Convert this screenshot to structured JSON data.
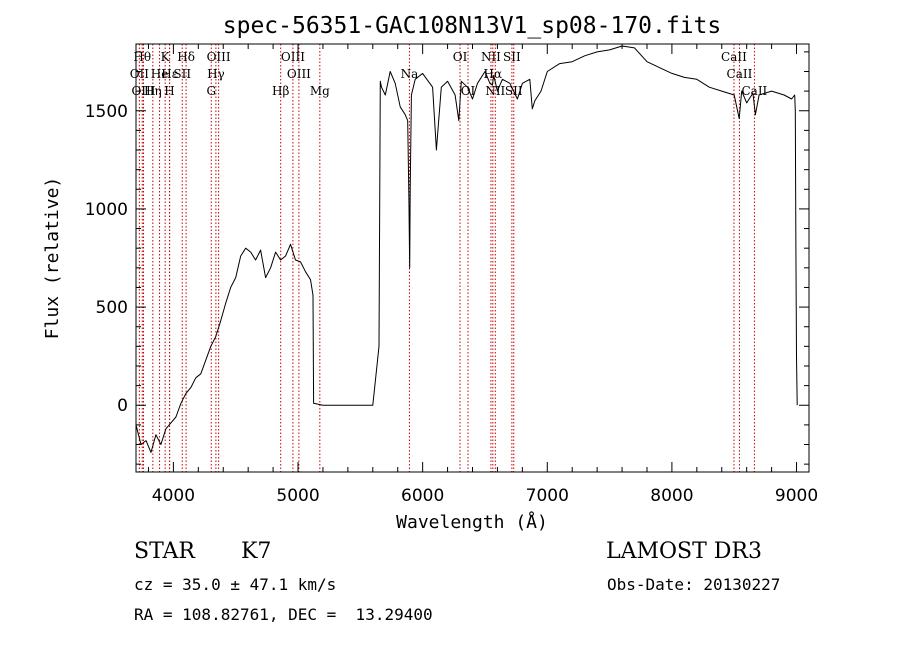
{
  "chart_data": {
    "type": "line",
    "title": "spec-56351-GAC108N13V1_sp08-170.fits",
    "xlabel": "Wavelength (Å)",
    "ylabel": "Flux (relative)",
    "xlim": [
      3700,
      9100
    ],
    "ylim": [
      -340,
      1840
    ],
    "xticks": [
      4000,
      5000,
      6000,
      7000,
      8000,
      9000
    ],
    "yticks": [
      0,
      500,
      1000,
      1500
    ],
    "grid": false,
    "series": [
      {
        "color": "#000000",
        "x": [
          3700,
          3740,
          3780,
          3820,
          3860,
          3900,
          3940,
          3980,
          4020,
          4060,
          4100,
          4140,
          4180,
          4220,
          4260,
          4300,
          4340,
          4380,
          4420,
          4460,
          4500,
          4540,
          4580,
          4620,
          4660,
          4700,
          4740,
          4780,
          4820,
          4860,
          4900,
          4940,
          4980,
          5020,
          5060,
          5100,
          5120,
          5125,
          5200,
          5300,
          5400,
          5500,
          5600,
          5650,
          5660,
          5670,
          5700,
          5740,
          5780,
          5820,
          5860,
          5880,
          5890,
          5896,
          5900,
          5910,
          5940,
          6000,
          6080,
          6110,
          6150,
          6200,
          6260,
          6290,
          6310,
          6360,
          6400,
          6440,
          6500,
          6540,
          6560,
          6570,
          6600,
          6640,
          6700,
          6760,
          6800,
          6860,
          6880,
          6900,
          6950,
          7000,
          7100,
          7200,
          7300,
          7400,
          7500,
          7600,
          7700,
          7800,
          7900,
          8000,
          8100,
          8200,
          8300,
          8400,
          8500,
          8540,
          8560,
          8600,
          8650,
          8670,
          8700,
          8800,
          8900,
          8960,
          8985,
          8990,
          8995,
          9000,
          9005
        ],
        "y": [
          -100,
          -200,
          -180,
          -240,
          -150,
          -200,
          -120,
          -90,
          -60,
          10,
          60,
          90,
          140,
          160,
          230,
          300,
          350,
          430,
          520,
          600,
          650,
          760,
          800,
          780,
          740,
          790,
          650,
          700,
          780,
          740,
          760,
          820,
          740,
          730,
          680,
          640,
          560,
          10,
          0,
          0,
          0,
          0,
          0,
          300,
          1650,
          1620,
          1580,
          1700,
          1640,
          1520,
          1480,
          1450,
          1050,
          700,
          1100,
          1580,
          1660,
          1690,
          1620,
          1300,
          1620,
          1650,
          1580,
          1450,
          1650,
          1620,
          1560,
          1640,
          1700,
          1640,
          1630,
          1680,
          1600,
          1660,
          1640,
          1560,
          1640,
          1660,
          1510,
          1550,
          1600,
          1700,
          1740,
          1750,
          1780,
          1800,
          1810,
          1830,
          1820,
          1750,
          1720,
          1690,
          1670,
          1660,
          1620,
          1600,
          1580,
          1460,
          1600,
          1540,
          1590,
          1480,
          1580,
          1600,
          1580,
          1560,
          1580,
          1500,
          800,
          250,
          0
        ]
      }
    ],
    "line_markers": [
      {
        "wl": 3727,
        "label": "OII",
        "row": 1
      },
      {
        "wl": 3750,
        "label": "Hθ",
        "row": 0
      },
      {
        "wl": 3760,
        "label": "OIII",
        "row": 2
      },
      {
        "wl": 3835,
        "label": "Hη",
        "row": 2
      },
      {
        "wl": 3889,
        "label": "He",
        "row": 1
      },
      {
        "wl": 3934,
        "label": "K",
        "row": 0
      },
      {
        "wl": 3969,
        "label": "H",
        "row": 2
      },
      {
        "wl": 3970,
        "label": "Hε",
        "row": 1
      },
      {
        "wl": 4071,
        "label": "SII",
        "row": 1
      },
      {
        "wl": 4102,
        "label": "Hδ",
        "row": 0
      },
      {
        "wl": 4304,
        "label": "G",
        "row": 2
      },
      {
        "wl": 4341,
        "label": "Hγ",
        "row": 1
      },
      {
        "wl": 4363,
        "label": "OIII",
        "row": 0
      },
      {
        "wl": 4861,
        "label": "Hβ",
        "row": 2
      },
      {
        "wl": 4959,
        "label": "OIII",
        "row": 0
      },
      {
        "wl": 5007,
        "label": "OIII",
        "row": 1
      },
      {
        "wl": 5175,
        "label": "Mg",
        "row": 2
      },
      {
        "wl": 5894,
        "label": "Na",
        "row": 1
      },
      {
        "wl": 6300,
        "label": "OI",
        "row": 0
      },
      {
        "wl": 6364,
        "label": "OI",
        "row": 2
      },
      {
        "wl": 6548,
        "label": "NII",
        "row": 0
      },
      {
        "wl": 6563,
        "label": "Hα",
        "row": 1
      },
      {
        "wl": 6583,
        "label": "NII",
        "row": 2
      },
      {
        "wl": 6716,
        "label": "SII",
        "row": 0
      },
      {
        "wl": 6731,
        "label": "SII",
        "row": 2
      },
      {
        "wl": 8498,
        "label": "CaII",
        "row": 0
      },
      {
        "wl": 8542,
        "label": "CaII",
        "row": 1
      },
      {
        "wl": 8662,
        "label": "CaII",
        "row": 2
      }
    ],
    "marker_color": "#cc0000"
  },
  "info": {
    "object_class": "STAR",
    "subclass": "K7",
    "catalog": "LAMOST DR3",
    "redshift": "cz = 35.0 ± 47.1 km/s",
    "obs_date": "Obs-Date: 20130227",
    "coords": "RA = 108.82761, DEC =  13.29400"
  }
}
